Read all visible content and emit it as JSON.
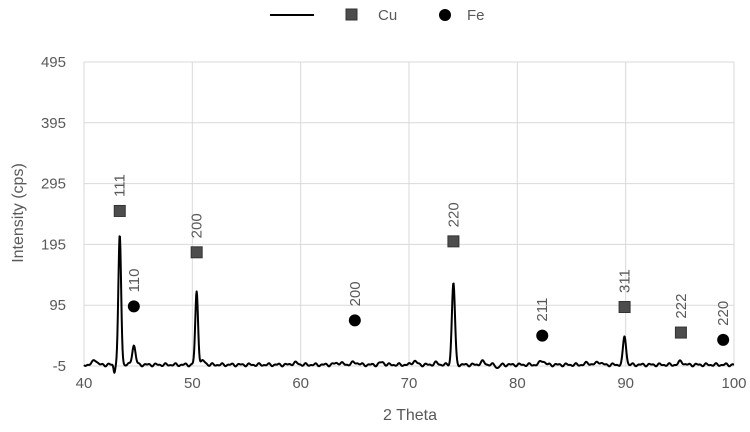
{
  "chart_data": {
    "type": "line",
    "xlabel": "2 Theta",
    "ylabel": "Intensity (cps)",
    "xlim": [
      40,
      100
    ],
    "ylim": [
      -5,
      495
    ],
    "xticks": [
      40,
      50,
      60,
      70,
      80,
      90,
      100
    ],
    "yticks": [
      -5,
      95,
      195,
      295,
      395,
      495
    ],
    "grid": true,
    "legend_position": "top",
    "colors": {
      "line": "#000000",
      "cu": "#4d4d4d",
      "fe": "#000000",
      "grid": "#d9d9d9",
      "text": "#595959"
    },
    "legend": [
      {
        "key": "line",
        "label": ""
      },
      {
        "key": "cu",
        "label": "Cu"
      },
      {
        "key": "fe",
        "label": "Fe"
      }
    ],
    "pattern": {
      "baseline": 0,
      "peaks": [
        {
          "x": 41.0,
          "h": 9,
          "w": 0.25
        },
        {
          "x": 43.3,
          "h": 212,
          "w": 0.18
        },
        {
          "x": 44.6,
          "h": 32,
          "w": 0.22
        },
        {
          "x": 50.4,
          "h": 120,
          "w": 0.18
        },
        {
          "x": 51.0,
          "h": 6,
          "w": 0.3
        },
        {
          "x": 59.5,
          "h": 3,
          "w": 0.4
        },
        {
          "x": 63.5,
          "h": 3,
          "w": 0.5
        },
        {
          "x": 65.0,
          "h": 4,
          "w": 0.4
        },
        {
          "x": 67.5,
          "h": 4,
          "w": 0.3
        },
        {
          "x": 70.5,
          "h": 6,
          "w": 0.3
        },
        {
          "x": 72.5,
          "h": 3,
          "w": 0.3
        },
        {
          "x": 74.1,
          "h": 135,
          "w": 0.2
        },
        {
          "x": 76.8,
          "h": 5,
          "w": 0.3
        },
        {
          "x": 82.3,
          "h": 7,
          "w": 0.3
        },
        {
          "x": 86.5,
          "h": 3,
          "w": 0.3
        },
        {
          "x": 87.5,
          "h": 5,
          "w": 0.3
        },
        {
          "x": 89.9,
          "h": 47,
          "w": 0.2
        },
        {
          "x": 95.1,
          "h": 6,
          "w": 0.25
        }
      ],
      "dips": [
        {
          "x": 42.8,
          "h": -12,
          "w": 0.1
        },
        {
          "x": 78.2,
          "h": -5,
          "w": 0.2
        }
      ]
    },
    "series": [
      {
        "name": "Cu",
        "marker": "square",
        "points": [
          {
            "x": 43.3,
            "y": 250,
            "label": "111"
          },
          {
            "x": 50.4,
            "y": 182,
            "label": "200"
          },
          {
            "x": 74.1,
            "y": 200,
            "label": "220"
          },
          {
            "x": 89.9,
            "y": 92,
            "label": "311"
          },
          {
            "x": 95.1,
            "y": 50,
            "label": "222"
          }
        ]
      },
      {
        "name": "Fe",
        "marker": "circle",
        "points": [
          {
            "x": 44.6,
            "y": 93,
            "label": "110"
          },
          {
            "x": 65.0,
            "y": 70,
            "label": "200"
          },
          {
            "x": 82.3,
            "y": 45,
            "label": "211"
          },
          {
            "x": 99.0,
            "y": 38,
            "label": "220"
          }
        ]
      }
    ]
  }
}
